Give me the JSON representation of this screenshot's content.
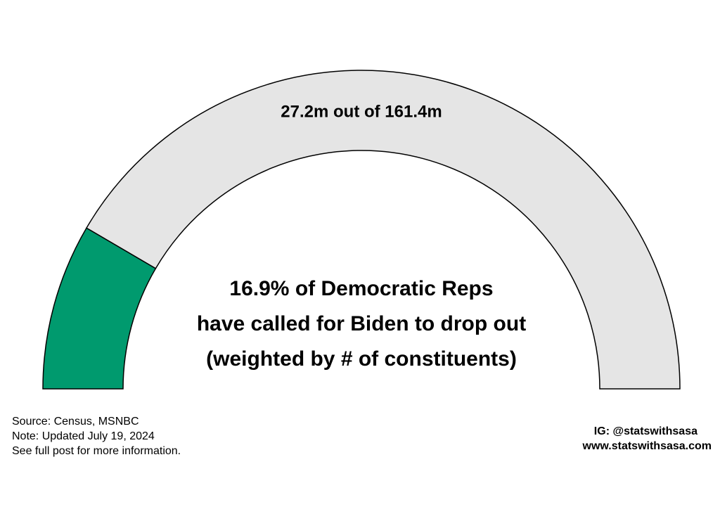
{
  "chart_data": {
    "type": "gauge",
    "value": 27.2,
    "max": 161.4,
    "label": "27.2m out of 161.4m",
    "headline": [
      "16.9% of Democratic Reps",
      "have called for Biden to drop out",
      "(weighted by # of constituents)"
    ],
    "colors": {
      "filled": "#009a6e",
      "empty": "#e5e5e5"
    }
  },
  "footer": {
    "notes": [
      "Source: Census, MSNBC",
      "Note: Updated July 19, 2024",
      "See full post for more information."
    ],
    "credits": [
      "IG: @statswithsasa",
      "www.statswithsasa.com"
    ]
  }
}
